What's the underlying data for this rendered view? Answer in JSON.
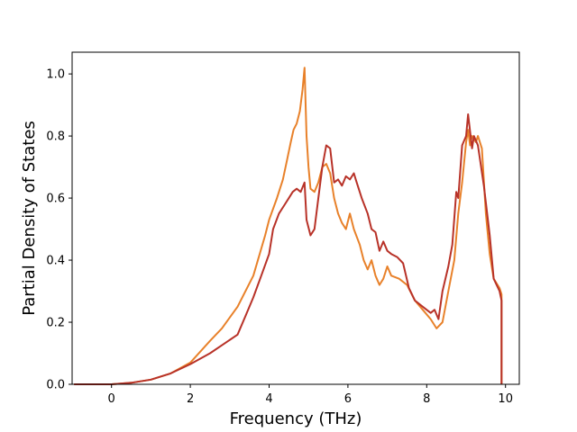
{
  "chart_data": {
    "type": "line",
    "title": "",
    "xlabel": "Frequency (THz)",
    "ylabel": "Partial Density of States",
    "xlim": [
      -1.0,
      10.35
    ],
    "ylim": [
      0.0,
      1.07
    ],
    "x_ticks": [
      0,
      2,
      4,
      6,
      8,
      10
    ],
    "x_tick_labels": [
      "0",
      "2",
      "4",
      "6",
      "8",
      "10"
    ],
    "y_ticks": [
      0.0,
      0.2,
      0.4,
      0.6,
      0.8,
      1.0
    ],
    "y_tick_labels": [
      "0.0",
      "0.2",
      "0.4",
      "0.6",
      "0.8",
      "1.0"
    ],
    "grid": false,
    "legend": "none",
    "series": [
      {
        "color": "#e8812a",
        "points": [
          [
            -0.95,
            0.0
          ],
          [
            0.0,
            0.0
          ],
          [
            0.5,
            0.005
          ],
          [
            1.0,
            0.015
          ],
          [
            1.5,
            0.035
          ],
          [
            2.0,
            0.07
          ],
          [
            2.5,
            0.14
          ],
          [
            2.8,
            0.18
          ],
          [
            3.2,
            0.25
          ],
          [
            3.6,
            0.35
          ],
          [
            3.9,
            0.48
          ],
          [
            4.0,
            0.53
          ],
          [
            4.2,
            0.6
          ],
          [
            4.35,
            0.66
          ],
          [
            4.45,
            0.72
          ],
          [
            4.55,
            0.78
          ],
          [
            4.62,
            0.82
          ],
          [
            4.7,
            0.84
          ],
          [
            4.78,
            0.88
          ],
          [
            4.85,
            0.95
          ],
          [
            4.9,
            1.02
          ],
          [
            4.95,
            0.8
          ],
          [
            5.0,
            0.7
          ],
          [
            5.05,
            0.63
          ],
          [
            5.15,
            0.62
          ],
          [
            5.25,
            0.65
          ],
          [
            5.35,
            0.7
          ],
          [
            5.45,
            0.71
          ],
          [
            5.55,
            0.68
          ],
          [
            5.65,
            0.6
          ],
          [
            5.75,
            0.55
          ],
          [
            5.85,
            0.52
          ],
          [
            5.95,
            0.5
          ],
          [
            6.05,
            0.55
          ],
          [
            6.15,
            0.5
          ],
          [
            6.3,
            0.45
          ],
          [
            6.4,
            0.4
          ],
          [
            6.5,
            0.37
          ],
          [
            6.6,
            0.4
          ],
          [
            6.7,
            0.35
          ],
          [
            6.8,
            0.32
          ],
          [
            6.9,
            0.34
          ],
          [
            7.0,
            0.38
          ],
          [
            7.1,
            0.35
          ],
          [
            7.3,
            0.34
          ],
          [
            7.5,
            0.32
          ],
          [
            7.7,
            0.27
          ],
          [
            7.9,
            0.24
          ],
          [
            8.1,
            0.21
          ],
          [
            8.25,
            0.18
          ],
          [
            8.4,
            0.2
          ],
          [
            8.55,
            0.3
          ],
          [
            8.7,
            0.4
          ],
          [
            8.8,
            0.55
          ],
          [
            8.9,
            0.65
          ],
          [
            9.0,
            0.78
          ],
          [
            9.05,
            0.82
          ],
          [
            9.1,
            0.77
          ],
          [
            9.15,
            0.8
          ],
          [
            9.25,
            0.78
          ],
          [
            9.3,
            0.8
          ],
          [
            9.4,
            0.76
          ],
          [
            9.5,
            0.55
          ],
          [
            9.6,
            0.42
          ],
          [
            9.7,
            0.34
          ],
          [
            9.85,
            0.31
          ],
          [
            9.95,
            0.29
          ],
          [
            10.05,
            0.18
          ],
          [
            10.15,
            0.05
          ],
          [
            10.3,
            0.0
          ],
          [
            12.0,
            0.0
          ]
        ]
      },
      {
        "color": "#b83228",
        "points": [
          [
            -0.95,
            0.0
          ],
          [
            0.0,
            0.0
          ],
          [
            0.5,
            0.005
          ],
          [
            1.0,
            0.015
          ],
          [
            1.5,
            0.035
          ],
          [
            2.0,
            0.065
          ],
          [
            2.5,
            0.1
          ],
          [
            2.85,
            0.13
          ],
          [
            3.2,
            0.16
          ],
          [
            3.4,
            0.22
          ],
          [
            3.6,
            0.28
          ],
          [
            3.8,
            0.35
          ],
          [
            4.0,
            0.42
          ],
          [
            4.1,
            0.5
          ],
          [
            4.25,
            0.55
          ],
          [
            4.4,
            0.58
          ],
          [
            4.5,
            0.6
          ],
          [
            4.6,
            0.62
          ],
          [
            4.7,
            0.63
          ],
          [
            4.8,
            0.62
          ],
          [
            4.9,
            0.65
          ],
          [
            4.95,
            0.53
          ],
          [
            5.05,
            0.48
          ],
          [
            5.15,
            0.5
          ],
          [
            5.25,
            0.6
          ],
          [
            5.35,
            0.7
          ],
          [
            5.45,
            0.77
          ],
          [
            5.55,
            0.76
          ],
          [
            5.65,
            0.65
          ],
          [
            5.75,
            0.66
          ],
          [
            5.85,
            0.64
          ],
          [
            5.95,
            0.67
          ],
          [
            6.05,
            0.66
          ],
          [
            6.15,
            0.68
          ],
          [
            6.2,
            0.66
          ],
          [
            6.35,
            0.6
          ],
          [
            6.5,
            0.55
          ],
          [
            6.6,
            0.5
          ],
          [
            6.7,
            0.49
          ],
          [
            6.8,
            0.43
          ],
          [
            6.9,
            0.46
          ],
          [
            7.0,
            0.43
          ],
          [
            7.1,
            0.42
          ],
          [
            7.25,
            0.41
          ],
          [
            7.4,
            0.39
          ],
          [
            7.55,
            0.31
          ],
          [
            7.7,
            0.27
          ],
          [
            7.9,
            0.25
          ],
          [
            8.1,
            0.23
          ],
          [
            8.2,
            0.24
          ],
          [
            8.3,
            0.21
          ],
          [
            8.4,
            0.3
          ],
          [
            8.55,
            0.38
          ],
          [
            8.65,
            0.45
          ],
          [
            8.75,
            0.62
          ],
          [
            8.8,
            0.6
          ],
          [
            8.9,
            0.77
          ],
          [
            9.0,
            0.8
          ],
          [
            9.05,
            0.87
          ],
          [
            9.15,
            0.76
          ],
          [
            9.2,
            0.8
          ],
          [
            9.3,
            0.77
          ],
          [
            9.45,
            0.64
          ],
          [
            9.6,
            0.48
          ],
          [
            9.7,
            0.34
          ],
          [
            9.85,
            0.3
          ],
          [
            10.0,
            0.27
          ],
          [
            10.1,
            0.15
          ],
          [
            10.2,
            0.07
          ],
          [
            10.3,
            0.0
          ],
          [
            12.0,
            0.0
          ]
        ]
      }
    ]
  }
}
